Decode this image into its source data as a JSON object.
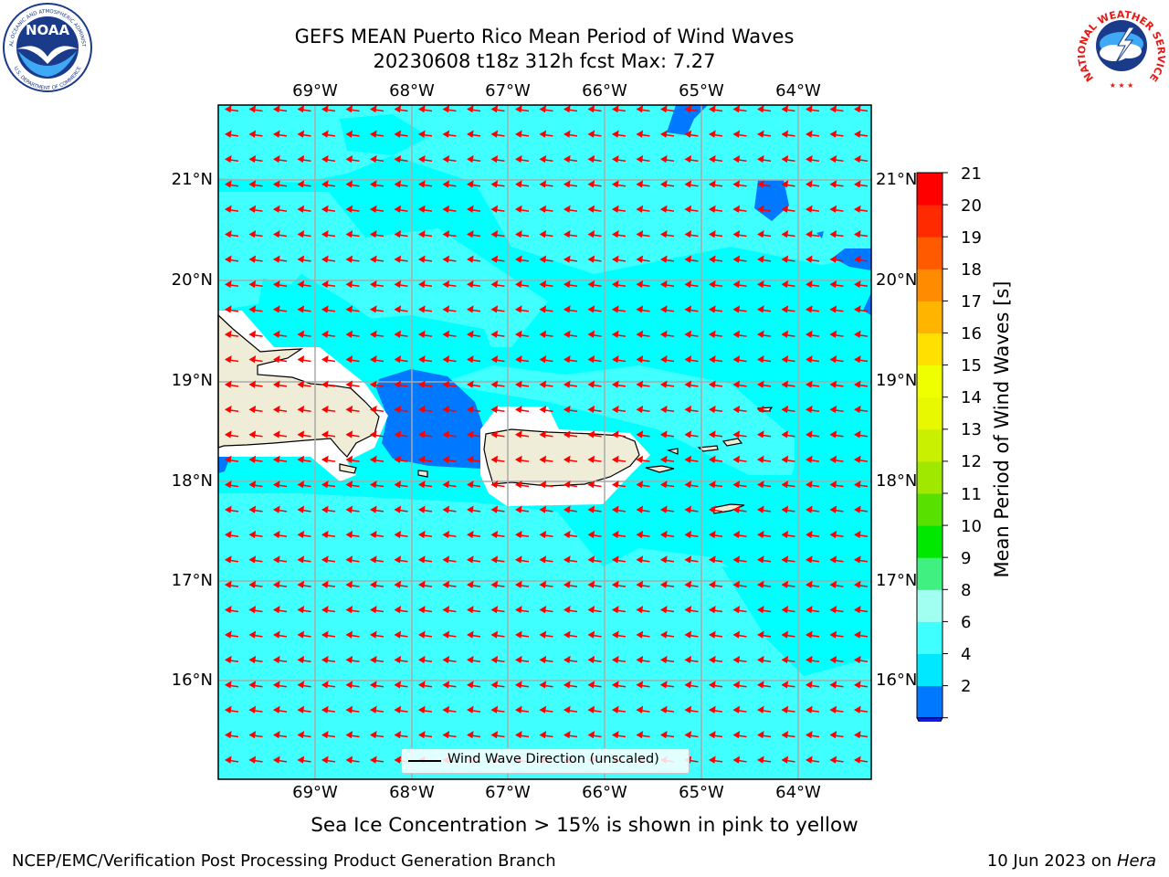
{
  "header": {
    "title_line1": "GEFS MEAN Puerto Rico Mean Period of Wind Waves",
    "title_line2": "20230608 t18z 312h fcst   Max: 7.27"
  },
  "logos": {
    "noaa_text": "NOAA",
    "noaa_ring_text": "NATIONAL OCEANIC AND ATMOSPHERIC ADMINISTRATION",
    "noaa_ring_text_bottom": "U.S. DEPARTMENT OF COMMERCE",
    "nws_ring_text": "NATIONAL WEATHER SERVICE"
  },
  "map": {
    "lon_labels": [
      "69°W",
      "68°W",
      "67°W",
      "66°W",
      "65°W",
      "64°W"
    ],
    "lat_labels": [
      "21°N",
      "20°N",
      "19°N",
      "18°N",
      "17°N",
      "16°N"
    ],
    "legend_label": "Wind Wave Direction (unscaled)",
    "ocean_color": "#00ffff",
    "arrow_color": "#ff0000",
    "land_color": "#efedd8"
  },
  "colorbar": {
    "title": "Mean Period of Wind Waves [s]",
    "ticks": [
      "21",
      "20",
      "19",
      "18",
      "17",
      "16",
      "15",
      "14",
      "13",
      "12",
      "11",
      "10",
      "9",
      "8",
      "6",
      "4",
      "2"
    ],
    "levels_colors": [
      "#0a18ff",
      "#0078ff",
      "#00e8ff",
      "#40ffff",
      "#a0fff0",
      "#40f080",
      "#00e800",
      "#58e000",
      "#a0e800",
      "#c8f000",
      "#e8f800",
      "#f0ff00",
      "#ffe000",
      "#ffb400",
      "#ff8c00",
      "#ff5a00",
      "#ff2a00",
      "#ff0000"
    ]
  },
  "notes": {
    "sea_ice": "Sea Ice Concentration > 15% is shown in pink to yellow"
  },
  "footer": {
    "left": "NCEP/EMC/Verification Post Processing Product Generation Branch",
    "right_date": "10 Jun 2023 on ",
    "right_host": "Hera"
  }
}
